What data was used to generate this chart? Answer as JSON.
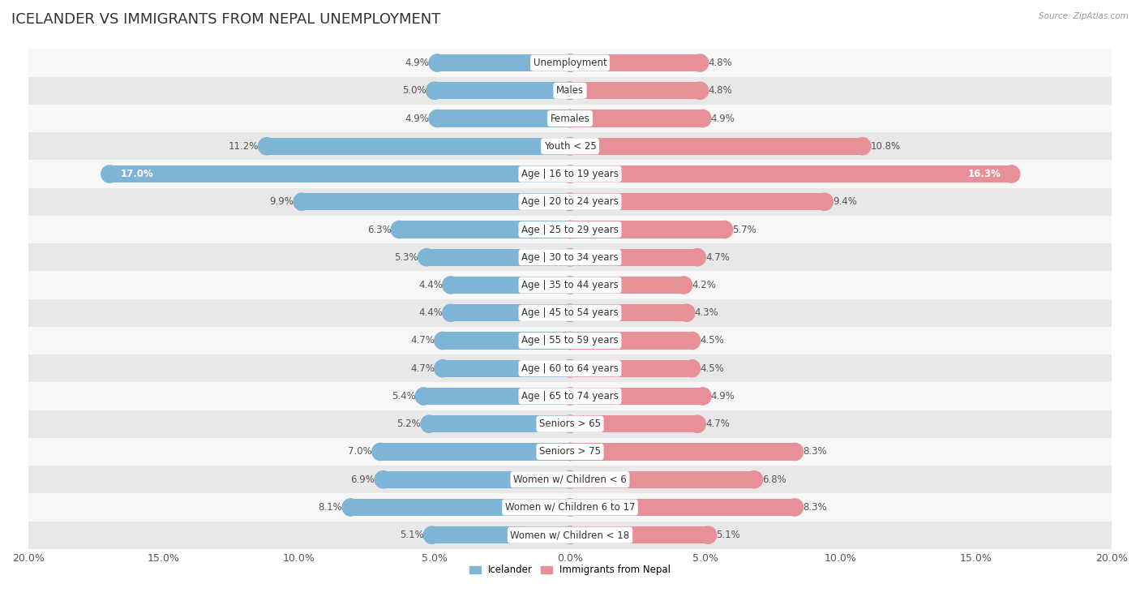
{
  "title": "ICELANDER VS IMMIGRANTS FROM NEPAL UNEMPLOYMENT",
  "source": "Source: ZipAtlas.com",
  "categories": [
    "Unemployment",
    "Males",
    "Females",
    "Youth < 25",
    "Age | 16 to 19 years",
    "Age | 20 to 24 years",
    "Age | 25 to 29 years",
    "Age | 30 to 34 years",
    "Age | 35 to 44 years",
    "Age | 45 to 54 years",
    "Age | 55 to 59 years",
    "Age | 60 to 64 years",
    "Age | 65 to 74 years",
    "Seniors > 65",
    "Seniors > 75",
    "Women w/ Children < 6",
    "Women w/ Children 6 to 17",
    "Women w/ Children < 18"
  ],
  "icelander": [
    4.9,
    5.0,
    4.9,
    11.2,
    17.0,
    9.9,
    6.3,
    5.3,
    4.4,
    4.4,
    4.7,
    4.7,
    5.4,
    5.2,
    7.0,
    6.9,
    8.1,
    5.1
  ],
  "nepal": [
    4.8,
    4.8,
    4.9,
    10.8,
    16.3,
    9.4,
    5.7,
    4.7,
    4.2,
    4.3,
    4.5,
    4.5,
    4.9,
    4.7,
    8.3,
    6.8,
    8.3,
    5.1
  ],
  "icelander_color": "#7eb5d6",
  "nepal_color": "#e8909a",
  "bar_height": 0.62,
  "xlim": 20.0,
  "background_color": "#ffffff",
  "row_color_odd": "#f7f7f7",
  "row_color_even": "#e8e8e8",
  "title_fontsize": 13,
  "label_fontsize": 8.5,
  "value_fontsize": 8.5,
  "tick_fontsize": 9
}
